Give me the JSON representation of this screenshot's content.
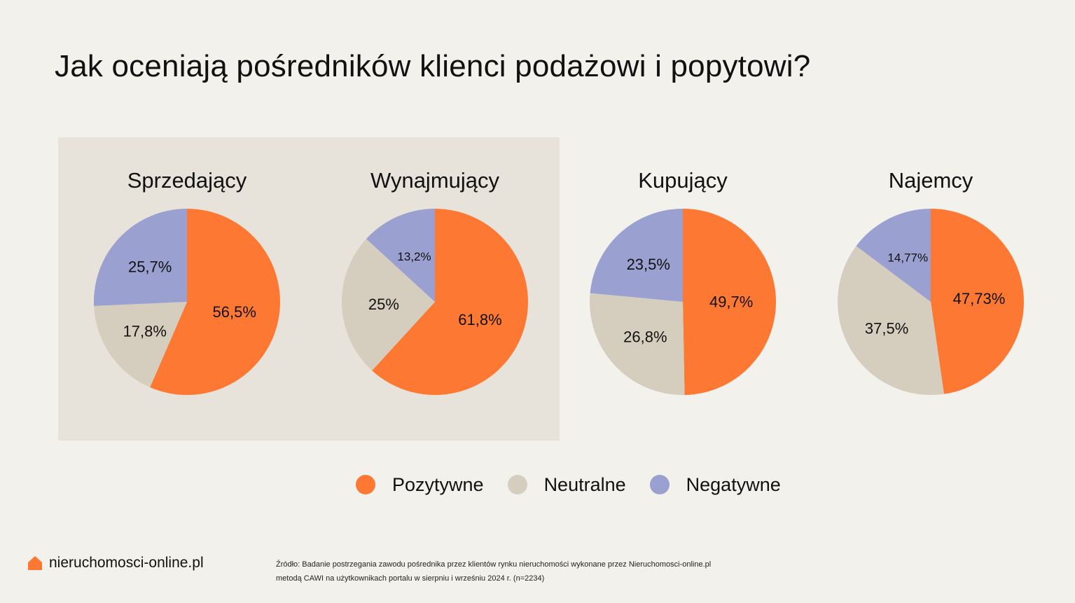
{
  "title": "Jak oceniają pośredników klienci podażowi i popytowi?",
  "colors": {
    "pozytywne": "#fd7833",
    "neutralne": "#d5cebf",
    "negatywne": "#9aa0cf",
    "background": "#f3f1ec",
    "group_background": "#e8e3da"
  },
  "legend": [
    {
      "label": "Pozytywne",
      "color": "#fd7833"
    },
    {
      "label": "Neutralne",
      "color": "#d5cebf"
    },
    {
      "label": "Negatywne",
      "color": "#9aa0cf"
    }
  ],
  "chart_data": [
    {
      "type": "pie",
      "title": "Sprzedający",
      "slices": [
        {
          "category": "Pozytywne",
          "value": 56.5,
          "label": "56,5%"
        },
        {
          "category": "Neutralne",
          "value": 17.8,
          "label": "17,8%"
        },
        {
          "category": "Negatywne",
          "value": 25.7,
          "label": "25,7%"
        }
      ]
    },
    {
      "type": "pie",
      "title": "Wynajmujący",
      "slices": [
        {
          "category": "Pozytywne",
          "value": 61.8,
          "label": "61,8%"
        },
        {
          "category": "Neutralne",
          "value": 25,
          "label": "25%"
        },
        {
          "category": "Negatywne",
          "value": 13.2,
          "label": "13,2%"
        }
      ]
    },
    {
      "type": "pie",
      "title": "Kupujący",
      "slices": [
        {
          "category": "Pozytywne",
          "value": 49.7,
          "label": "49,7%"
        },
        {
          "category": "Neutralne",
          "value": 26.8,
          "label": "26,8%"
        },
        {
          "category": "Negatywne",
          "value": 23.5,
          "label": "23,5%"
        }
      ]
    },
    {
      "type": "pie",
      "title": "Najemcy",
      "slices": [
        {
          "category": "Pozytywne",
          "value": 47.73,
          "label": "47,73%"
        },
        {
          "category": "Neutralne",
          "value": 37.5,
          "label": "37,5%"
        },
        {
          "category": "Negatywne",
          "value": 14.77,
          "label": "14,77%"
        }
      ]
    }
  ],
  "brand": {
    "name": "nieruchomosci-online.pl",
    "icon": "house-icon"
  },
  "source": {
    "line1": "Źródło: Badanie postrzegania zawodu pośrednika przez klientów rynku nieruchomości wykonane przez Nieruchomosci-online.pl",
    "line2": "metodą CAWI na użytkownikach portalu w sierpniu i wrześniu 2024 r.  (n=2234)"
  }
}
